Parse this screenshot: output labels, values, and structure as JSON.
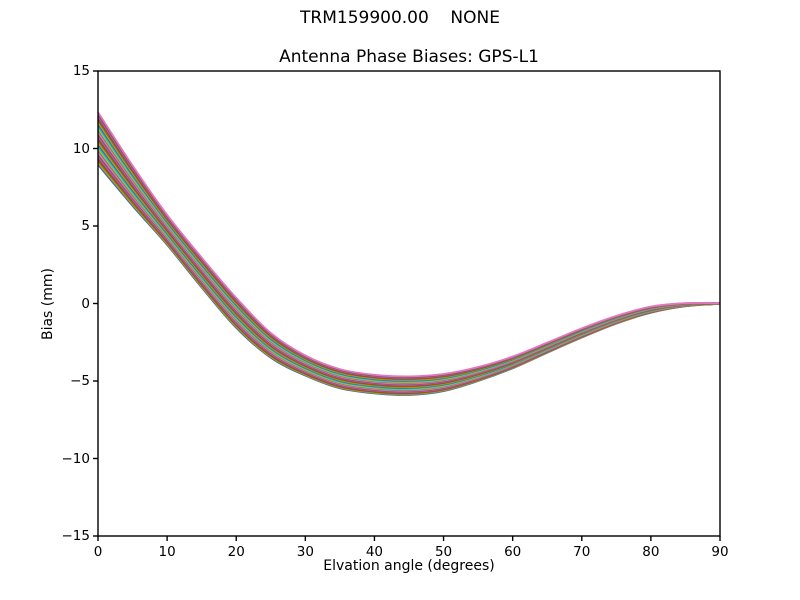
{
  "suptitle": "TRM159900.00    NONE",
  "chart_data": {
    "type": "line",
    "title": "Antenna Phase Biases: GPS-L1",
    "xlabel": "Elvation angle (degrees)",
    "ylabel": "Bias (mm)",
    "xlim": [
      0,
      90
    ],
    "ylim": [
      -15,
      15
    ],
    "grid": false,
    "legend": "none",
    "xticks": {
      "values": [
        0,
        10,
        20,
        30,
        40,
        50,
        60,
        70,
        80,
        90
      ],
      "labels": [
        "0",
        "10",
        "20",
        "30",
        "40",
        "50",
        "60",
        "70",
        "80",
        "90"
      ]
    },
    "yticks": {
      "values": [
        15,
        10,
        5,
        0,
        -5,
        -10,
        -15
      ],
      "labels": [
        "15",
        "10",
        "5",
        "0",
        "−5",
        "−10",
        "−15"
      ]
    },
    "x": [
      0,
      5,
      10,
      15,
      20,
      25,
      30,
      35,
      40,
      45,
      50,
      55,
      60,
      65,
      70,
      75,
      80,
      85,
      90
    ],
    "center_curve": [
      10.65,
      7.6,
      4.75,
      2.0,
      -0.6,
      -2.7,
      -4.0,
      -4.85,
      -5.2,
      -5.3,
      -5.1,
      -4.55,
      -3.8,
      -2.85,
      -1.9,
      -1.05,
      -0.4,
      -0.08,
      0.0
    ],
    "half_spread": [
      1.7,
      1.3,
      0.97,
      0.97,
      0.97,
      0.8,
      0.65,
      0.62,
      0.6,
      0.6,
      0.55,
      0.45,
      0.38,
      0.33,
      0.3,
      0.25,
      0.2,
      0.1,
      0.02
    ],
    "n_curves": 27,
    "curve_rule": "curve_i = center_curve + t_i * half_spread, t_i evenly spaced in [-1, 1]; colors cycle through color list",
    "colors": [
      "#1f77b4",
      "#ff7f0e",
      "#2ca02c",
      "#d62728",
      "#9467bd",
      "#8c564b",
      "#e377c2",
      "#7f7f7f",
      "#bcbd22",
      "#17becf"
    ],
    "line_width": 1.8,
    "axis_color": "#000000",
    "background": "#ffffff"
  }
}
